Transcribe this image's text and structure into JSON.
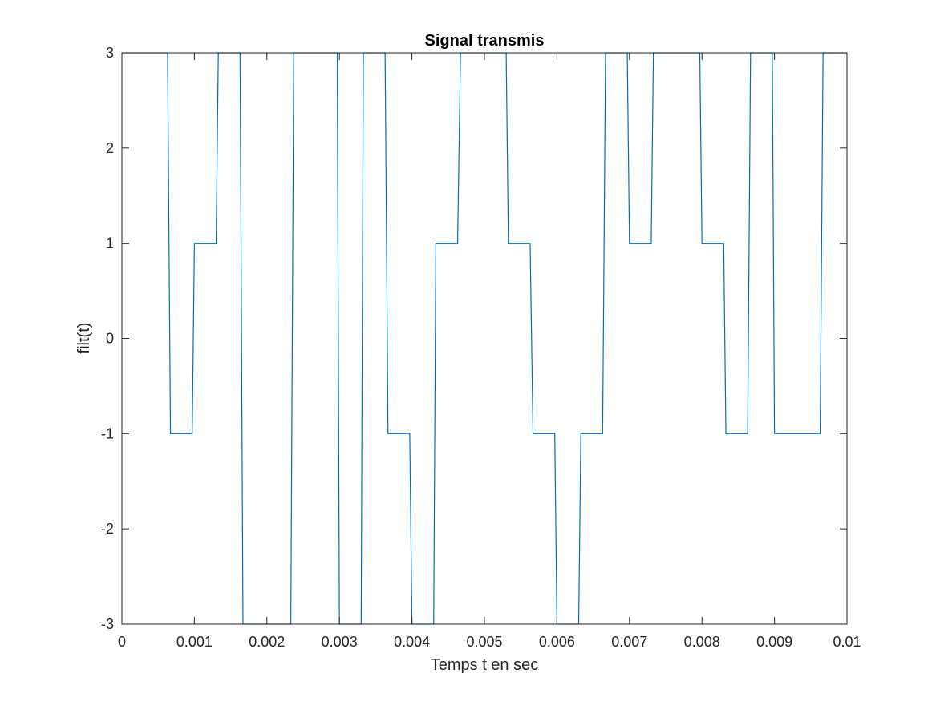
{
  "chart_data": {
    "type": "line",
    "title": "Signal transmis",
    "xlabel": "Temps t en sec",
    "ylabel": "filt(t)",
    "xlim": [
      0,
      0.01
    ],
    "ylim": [
      -3,
      3
    ],
    "xticks": [
      0,
      0.001,
      0.002,
      0.003,
      0.004,
      0.005,
      0.006,
      0.007,
      0.008,
      0.009,
      0.01
    ],
    "xtick_labels": [
      "0",
      "0.001",
      "0.002",
      "0.003",
      "0.004",
      "0.005",
      "0.006",
      "0.007",
      "0.008",
      "0.009",
      "0.01"
    ],
    "yticks": [
      -3,
      -2,
      -1,
      0,
      1,
      2,
      3
    ],
    "ytick_labels": [
      "-3",
      "-2",
      "-1",
      "0",
      "1",
      "2",
      "3"
    ],
    "grid": false,
    "series": [
      {
        "color": "#0072bd",
        "x": [
          0,
          0.00063,
          0.00067,
          0.00097,
          0.001,
          0.0013,
          0.00133,
          0.00163,
          0.00167,
          0.00233,
          0.00237,
          0.00297,
          0.003,
          0.0033,
          0.00333,
          0.00363,
          0.00367,
          0.00397,
          0.004,
          0.0043,
          0.00433,
          0.00463,
          0.00467,
          0.0053,
          0.00533,
          0.00563,
          0.00567,
          0.00597,
          0.006,
          0.0063,
          0.00633,
          0.00663,
          0.00667,
          0.00697,
          0.007,
          0.0073,
          0.00733,
          0.00797,
          0.008,
          0.0083,
          0.00833,
          0.00863,
          0.00867,
          0.00897,
          0.009,
          0.00963,
          0.00967,
          0.01
        ],
        "y": [
          3,
          3,
          -1,
          -1,
          1,
          1,
          3,
          3,
          -3,
          -3,
          3,
          3,
          -3,
          -3,
          3,
          3,
          -1,
          -1,
          -3,
          -3,
          1,
          1,
          3,
          3,
          1,
          1,
          -1,
          -1,
          -3,
          -3,
          -1,
          -1,
          3,
          3,
          1,
          1,
          3,
          3,
          1,
          1,
          -1,
          -1,
          3,
          3,
          -1,
          -1,
          3,
          3
        ]
      }
    ]
  }
}
